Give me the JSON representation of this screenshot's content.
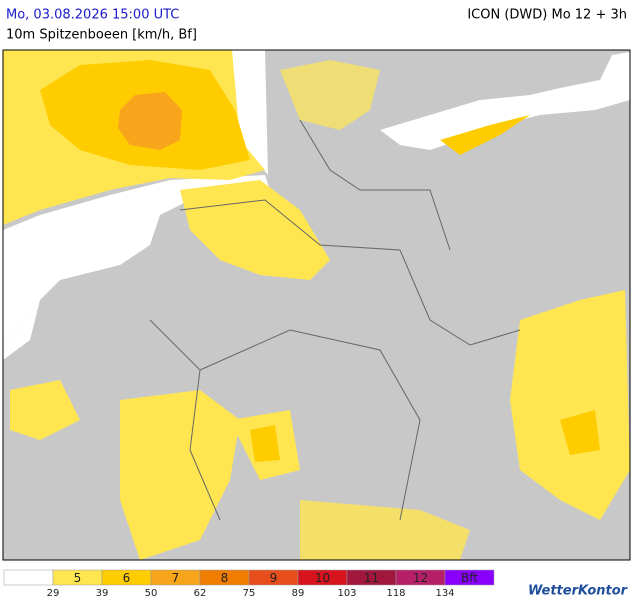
{
  "header": {
    "left": "Mo, 03.08.2026 15:00 UTC",
    "right": "ICON (DWD) Mo 12 + 3h",
    "subtitle": "10m Spitzenboeen [km/h, Bf]"
  },
  "legend": {
    "items": [
      {
        "label": null,
        "color": "#ffffff"
      },
      {
        "label": "5",
        "color": "#ffe651"
      },
      {
        "label": "6",
        "color": "#ffcc00"
      },
      {
        "label": "7",
        "color": "#f9a51b"
      },
      {
        "label": "8",
        "color": "#f07d00"
      },
      {
        "label": "9",
        "color": "#e84e1b"
      },
      {
        "label": "10",
        "color": "#d7131e"
      },
      {
        "label": "11",
        "color": "#a2173e"
      },
      {
        "label": "12",
        "color": "#b81f69"
      },
      {
        "label": "Bft",
        "color": "#8a00ff"
      }
    ],
    "thresholds": [
      "29",
      "39",
      "50",
      "62",
      "75",
      "89",
      "103",
      "118",
      "134"
    ]
  },
  "logo": "WetterKontor"
}
